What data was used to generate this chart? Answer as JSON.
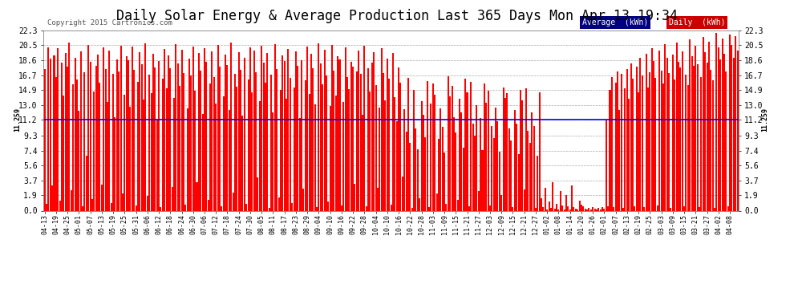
{
  "title": "Daily Solar Energy & Average Production Last 365 Days Mon Apr 13 19:34",
  "copyright": "Copyright 2015 Cartronics.com",
  "average_value": 11.259,
  "average_label": "11.259",
  "ylim": [
    0.0,
    22.3
  ],
  "yticks": [
    0.0,
    1.9,
    3.7,
    5.6,
    7.4,
    9.3,
    11.2,
    13.0,
    14.9,
    16.7,
    18.6,
    20.5,
    22.3
  ],
  "bar_color": "#FF0000",
  "avg_line_color": "#0000FF",
  "background_color": "#FFFFFF",
  "grid_color": "#AAAAAA",
  "legend_avg_bg": "#000080",
  "legend_daily_bg": "#CC0000",
  "title_fontsize": 12,
  "tick_fontsize": 7,
  "daily_values": [
    17.5,
    0.8,
    20.2,
    18.8,
    3.1,
    19.2,
    16.5,
    20.1,
    1.2,
    18.3,
    14.2,
    19.5,
    17.8,
    20.8,
    2.5,
    15.6,
    18.9,
    16.2,
    12.3,
    19.7,
    0.5,
    17.1,
    6.8,
    20.5,
    18.4,
    1.4,
    14.7,
    17.9,
    19.3,
    15.8,
    3.2,
    20.2,
    17.5,
    13.4,
    19.8,
    0.9,
    16.9,
    11.5,
    18.7,
    17.2,
    20.4,
    2.1,
    14.3,
    19.1,
    18.6,
    12.8,
    20.3,
    17.4,
    0.6,
    15.9,
    19.6,
    18.1,
    13.7,
    20.7,
    1.8,
    16.8,
    14.5,
    19.4,
    17.7,
    11.2,
    18.5,
    0.4,
    16.3,
    20.0,
    15.1,
    19.2,
    17.6,
    2.9,
    13.9,
    20.6,
    18.2,
    15.4,
    19.9,
    17.0,
    0.7,
    12.6,
    18.8,
    16.7,
    20.3,
    14.8,
    3.5,
    19.5,
    17.3,
    11.9,
    20.1,
    18.4,
    1.3,
    15.7,
    19.7,
    16.5,
    13.2,
    20.5,
    17.8,
    0.5,
    14.1,
    19.3,
    18.0,
    12.4,
    20.8,
    2.2,
    16.9,
    15.3,
    19.6,
    17.4,
    11.7,
    18.9,
    0.8,
    16.2,
    20.2,
    14.6,
    19.8,
    17.1,
    4.1,
    13.5,
    20.4,
    18.3,
    15.8,
    19.5,
    0.3,
    16.8,
    12.1,
    20.6,
    17.5,
    1.6,
    14.9,
    19.2,
    18.5,
    13.8,
    20.0,
    16.4,
    0.9,
    15.2,
    19.7,
    17.9,
    11.4,
    18.6,
    2.7,
    16.1,
    20.3,
    14.4,
    19.4,
    17.6,
    13.1,
    0.4,
    20.7,
    18.2,
    15.6,
    19.9,
    16.7,
    1.1,
    12.9,
    20.5,
    17.3,
    14.2,
    19.1,
    18.7,
    0.6,
    13.4,
    20.2,
    16.5,
    15.0,
    18.4,
    17.8,
    3.3,
    17.2,
    19.8,
    16.9,
    11.8,
    20.4,
    0.5,
    17.6,
    14.7,
    18.3,
    19.6,
    15.5,
    2.8,
    12.7,
    20.1,
    17.0,
    13.6,
    18.8,
    16.3,
    0.7,
    19.5,
    14.0,
    11.1,
    17.7,
    15.8,
    4.2,
    12.5,
    9.8,
    16.4,
    8.4,
    0.3,
    14.9,
    10.2,
    7.6,
    1.5,
    13.5,
    11.8,
    9.1,
    16.0,
    0.4,
    13.2,
    15.7,
    14.3,
    2.1,
    8.9,
    12.6,
    10.4,
    7.2,
    0.8,
    16.6,
    14.1,
    15.4,
    11.5,
    9.7,
    1.3,
    13.8,
    12.1,
    7.8,
    16.3,
    14.6,
    0.5,
    15.9,
    10.8,
    9.3,
    13.0,
    2.4,
    11.4,
    7.5,
    15.7,
    13.3,
    14.8,
    0.6,
    10.5,
    9.0,
    12.7,
    11.1,
    7.3,
    1.9,
    15.2,
    13.9,
    14.5,
    10.2,
    8.7,
    0.4,
    12.4,
    10.8,
    7.0,
    14.9,
    13.6,
    2.6,
    15.1,
    9.9,
    8.4,
    12.1,
    10.5,
    0.3,
    6.8,
    14.6,
    1.5,
    0.4,
    2.8,
    0.1,
    1.1,
    0.3,
    3.5,
    0.2,
    0.8,
    0.1,
    2.4,
    0.6,
    0.1,
    1.9,
    0.5,
    0.1,
    3.1,
    0.4,
    0.2,
    0.1,
    1.2,
    0.7,
    0.5,
    0.2,
    0.1,
    0.3,
    0.1,
    0.4,
    0.2,
    0.1,
    0.3,
    0.1,
    0.4,
    0.2,
    11.2,
    0.5,
    14.9,
    16.5,
    0.4,
    15.8,
    17.2,
    12.4,
    16.9,
    0.3,
    15.1,
    17.5,
    13.8,
    18.2,
    16.3,
    0.5,
    17.8,
    14.6,
    18.9,
    16.7,
    0.4,
    19.4,
    15.2,
    17.1,
    20.1,
    18.5,
    16.4,
    0.6,
    19.8,
    17.3,
    15.7,
    20.6,
    18.9,
    17.0,
    0.3,
    19.3,
    16.2,
    20.8,
    18.4,
    17.7,
    19.7,
    0.5,
    16.8,
    15.5,
    21.2,
    19.1,
    17.9,
    20.4,
    18.1,
    0.4,
    16.5,
    21.5,
    19.6,
    18.3,
    20.9,
    17.4,
    16.1,
    0.3,
    22.0,
    20.2,
    18.7,
    21.3,
    19.4,
    17.2,
    0.5,
    21.8,
    20.5,
    18.9,
    21.6,
    19.8,
    17.6,
    0.4,
    22.1,
    20.8,
    19.2,
    21.9,
    20.1,
    18.3,
    22.2,
    21.0,
    0.3,
    19.5,
    22.0,
    20.4,
    18.7,
    21.8,
    20.6,
    19.8,
    0.5,
    21.2,
    19.9,
    20.7,
    22.3
  ],
  "xtick_labels": [
    "04-13",
    "04-19",
    "04-25",
    "05-01",
    "05-07",
    "05-13",
    "05-19",
    "05-25",
    "05-31",
    "06-06",
    "06-12",
    "06-18",
    "06-24",
    "06-30",
    "07-06",
    "07-12",
    "07-18",
    "07-24",
    "07-30",
    "08-05",
    "08-11",
    "08-17",
    "08-23",
    "08-29",
    "09-04",
    "09-10",
    "09-16",
    "09-22",
    "09-28",
    "10-04",
    "10-10",
    "10-16",
    "10-22",
    "10-28",
    "11-03",
    "11-09",
    "11-15",
    "11-21",
    "11-27",
    "12-03",
    "12-09",
    "12-15",
    "12-21",
    "12-27",
    "01-02",
    "01-08",
    "01-14",
    "01-20",
    "01-26",
    "02-01",
    "02-07",
    "02-13",
    "02-19",
    "02-25",
    "03-03",
    "03-09",
    "03-15",
    "03-21",
    "03-27",
    "04-02",
    "04-08"
  ]
}
